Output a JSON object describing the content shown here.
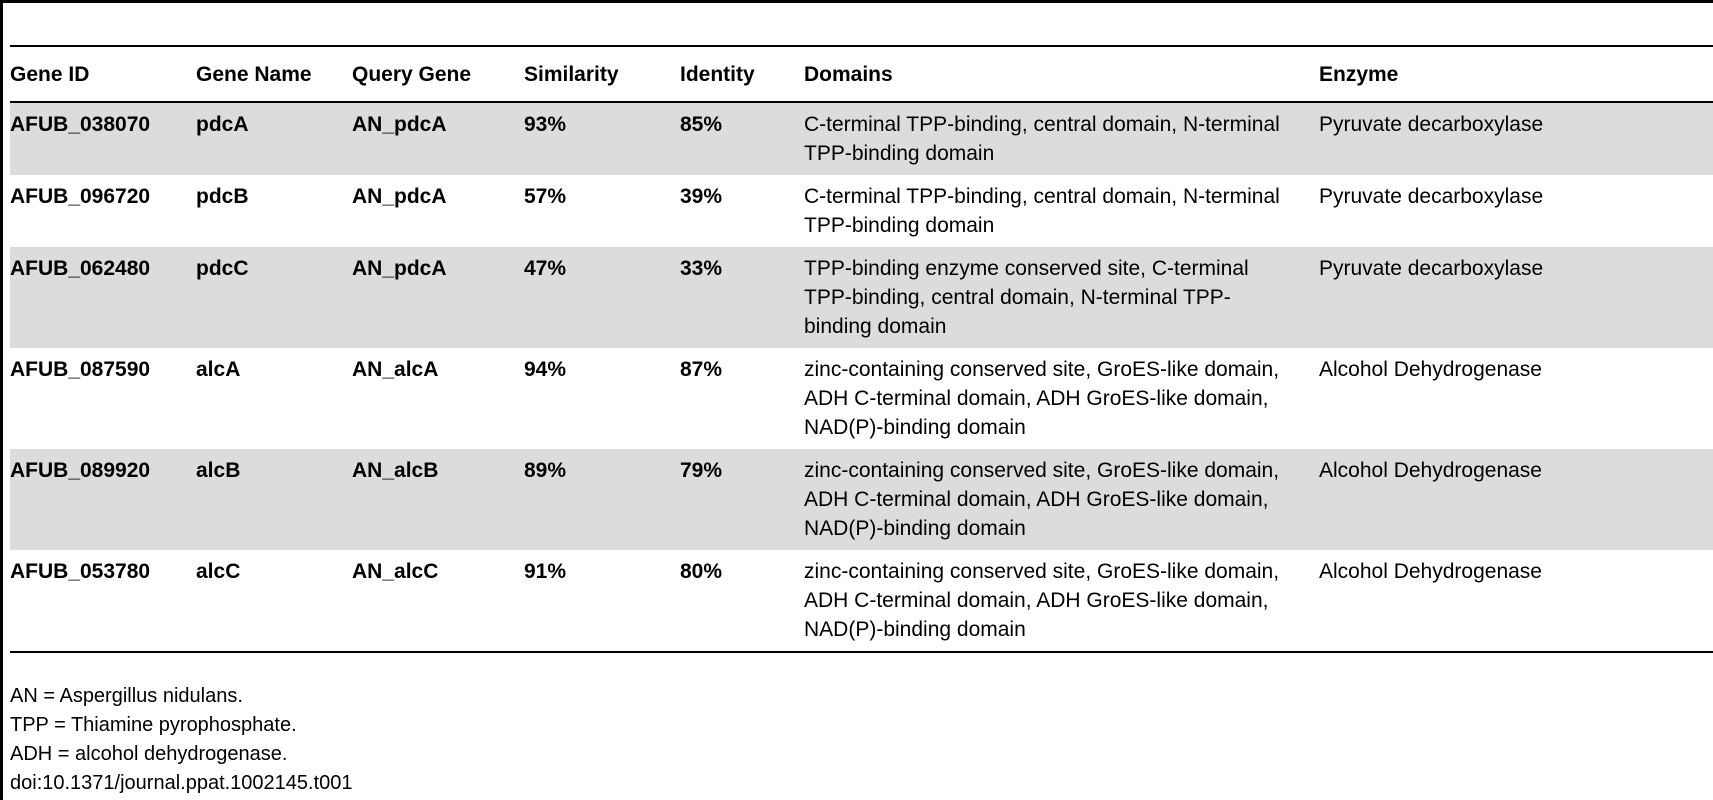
{
  "table": {
    "headers": [
      "Gene ID",
      "Gene Name",
      "Query Gene",
      "Similarity",
      "Identity",
      "Domains",
      "Enzyme"
    ],
    "rows": [
      {
        "gene_id": "AFUB_038070",
        "gene_name": "pdcA",
        "query_gene": "AN_pdcA",
        "similarity": "93%",
        "identity": "85%",
        "domains": "C-terminal TPP-binding, central domain, N-terminal TPP-binding domain",
        "enzyme": "Pyruvate decarboxylase"
      },
      {
        "gene_id": "AFUB_096720",
        "gene_name": "pdcB",
        "query_gene": "AN_pdcA",
        "similarity": "57%",
        "identity": "39%",
        "domains": "C-terminal TPP-binding, central domain, N-terminal TPP-binding domain",
        "enzyme": "Pyruvate decarboxylase"
      },
      {
        "gene_id": "AFUB_062480",
        "gene_name": "pdcC",
        "query_gene": "AN_pdcA",
        "similarity": "47%",
        "identity": "33%",
        "domains": "TPP-binding enzyme conserved site, C-terminal TPP-binding, central domain, N-terminal TPP-binding domain",
        "enzyme": "Pyruvate decarboxylase"
      },
      {
        "gene_id": "AFUB_087590",
        "gene_name": "alcA",
        "query_gene": "AN_alcA",
        "similarity": "94%",
        "identity": "87%",
        "domains": "zinc-containing conserved site, GroES-like domain, ADH C-terminal domain, ADH GroES-like domain, NAD(P)-binding domain",
        "enzyme": "Alcohol Dehydrogenase"
      },
      {
        "gene_id": "AFUB_089920",
        "gene_name": "alcB",
        "query_gene": "AN_alcB",
        "similarity": "89%",
        "identity": "79%",
        "domains": "zinc-containing conserved site, GroES-like domain, ADH C-terminal domain, ADH GroES-like domain, NAD(P)-binding domain",
        "enzyme": "Alcohol Dehydrogenase"
      },
      {
        "gene_id": "AFUB_053780",
        "gene_name": "alcC",
        "query_gene": "AN_alcC",
        "similarity": "91%",
        "identity": "80%",
        "domains": "zinc-containing conserved site, GroES-like domain, ADH C-terminal domain, ADH GroES-like domain, NAD(P)-binding domain",
        "enzyme": "Alcohol Dehydrogenase"
      }
    ]
  },
  "footnotes": [
    "AN = Aspergillus nidulans.",
    "TPP = Thiamine pyrophosphate.",
    "ADH = alcohol dehydrogenase.",
    "doi:10.1371/journal.ppat.1002145.t001"
  ]
}
